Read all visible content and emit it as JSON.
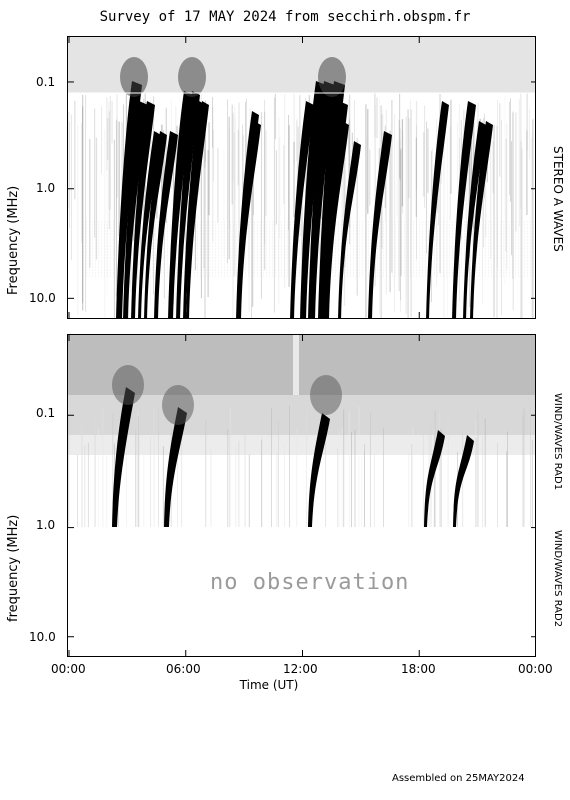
{
  "title": "Survey of 17 MAY 2024 from secchirh.obspm.fr",
  "footer": "Assembled on 25MAY2024",
  "no_observation_text": "no observation",
  "xlabel": "Time (UT)",
  "chart_data": [
    {
      "type": "heatmap",
      "panel": "top",
      "ylabel": "Frequency (MHz)",
      "right_label": "STEREO A WAVES",
      "yscale": "log",
      "yticks": [
        "0.1",
        "1.0",
        "10.0"
      ],
      "xticks": [
        "00:00",
        "06:00",
        "12:00",
        "18:00",
        "00:00"
      ],
      "xlim_hours": [
        0,
        24
      ]
    },
    {
      "type": "heatmap",
      "panel": "bottom",
      "ylabel": "frequency (MHz)",
      "right_labels": [
        "WIND/WAVES RAD1",
        "WIND/WAVES RAD2"
      ],
      "yscale": "log",
      "yticks": [
        "0.1",
        "1.0",
        "10.0"
      ],
      "xticks": [
        "00:00",
        "06:00",
        "12:00",
        "18:00",
        "00:00"
      ],
      "xlim_hours": [
        0,
        24
      ]
    }
  ]
}
